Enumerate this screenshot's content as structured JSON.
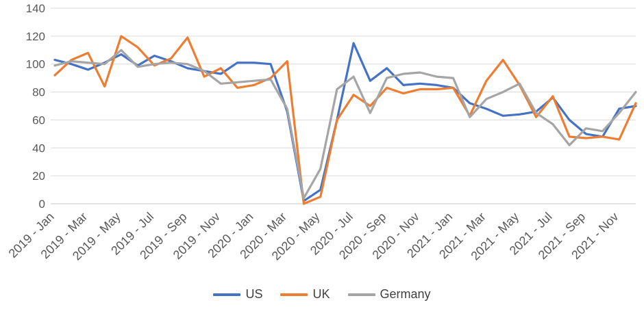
{
  "chart_data": {
    "type": "line",
    "title": "",
    "xlabel": "",
    "ylabel": "",
    "ylim": [
      0,
      140
    ],
    "y_tick_step": 20,
    "grid": true,
    "legend_position": "bottom",
    "axis_text_color": "#595959",
    "gridline_color": "#D9D9D9",
    "zero_line_color": "#C6C6C6",
    "x_tick_every": 2,
    "x": [
      "2019 - Jan",
      "2019 - Feb",
      "2019 - Mar",
      "2019 - Apr",
      "2019 - May",
      "2019 - Jun",
      "2019 - Jul",
      "2019 - Aug",
      "2019 - Sep",
      "2019 - Oct",
      "2019 - Nov",
      "2019 - Dec",
      "2020 - Jan",
      "2020 - Feb",
      "2020 - Mar",
      "2020 - Apr",
      "2020 - May",
      "2020 - Jun",
      "2020 - Jul",
      "2020 - Aug",
      "2020 - Sep",
      "2020 - Oct",
      "2020 - Nov",
      "2020 - Dec",
      "2021 - Jan",
      "2021 - Feb",
      "2021 - Mar",
      "2021 - Apr",
      "2021 - May",
      "2021 - Jun",
      "2021 - Jul",
      "2021 - Aug",
      "2021 - Sep",
      "2021 - Oct",
      "2021 - Nov",
      "2021 - Dec"
    ],
    "x_tick_labels": [
      "2019 - Jan",
      "2019 - Mar",
      "2019 - May",
      "2019 - Jul",
      "2019 - Sep",
      "2019 - Nov",
      "2020 - Jan",
      "2020 - Mar",
      "2020 - May",
      "2020 - Jul",
      "2020 - Sep",
      "2020 - Nov",
      "2021 - Jan",
      "2021 - Mar",
      "2021 - May",
      "2021 - Jul",
      "2021 - Sep",
      "2021 - Nov"
    ],
    "y_tick_labels": [
      "0",
      "20",
      "40",
      "60",
      "80",
      "100",
      "120",
      "140"
    ],
    "series": [
      {
        "name": "US",
        "color": "#4472C4",
        "values": [
          103,
          100,
          96,
          101,
          107,
          99,
          106,
          102,
          97,
          95,
          93,
          101,
          101,
          100,
          66,
          2,
          10,
          60,
          115,
          88,
          97,
          85,
          86,
          85,
          83,
          72,
          68,
          63,
          64,
          66,
          76,
          60,
          50,
          48,
          68,
          70
        ]
      },
      {
        "name": "UK",
        "color": "#ED7D31",
        "values": [
          92,
          103,
          108,
          84,
          120,
          112,
          99,
          104,
          119,
          91,
          97,
          83,
          85,
          90,
          102,
          0,
          5,
          60,
          78,
          70,
          83,
          79,
          82,
          82,
          83,
          63,
          88,
          103,
          85,
          62,
          77,
          48,
          47,
          48,
          46,
          72
        ]
      },
      {
        "name": "Germany",
        "color": "#A5A5A5",
        "values": [
          99,
          102,
          101,
          100,
          110,
          98,
          100,
          101,
          100,
          95,
          86,
          87,
          88,
          89,
          68,
          4,
          25,
          82,
          91,
          65,
          90,
          93,
          94,
          91,
          90,
          62,
          75,
          80,
          86,
          65,
          57,
          42,
          54,
          52,
          65,
          80
        ]
      }
    ]
  },
  "legend": {
    "us_label": "US",
    "uk_label": "UK",
    "germany_label": "Germany"
  }
}
